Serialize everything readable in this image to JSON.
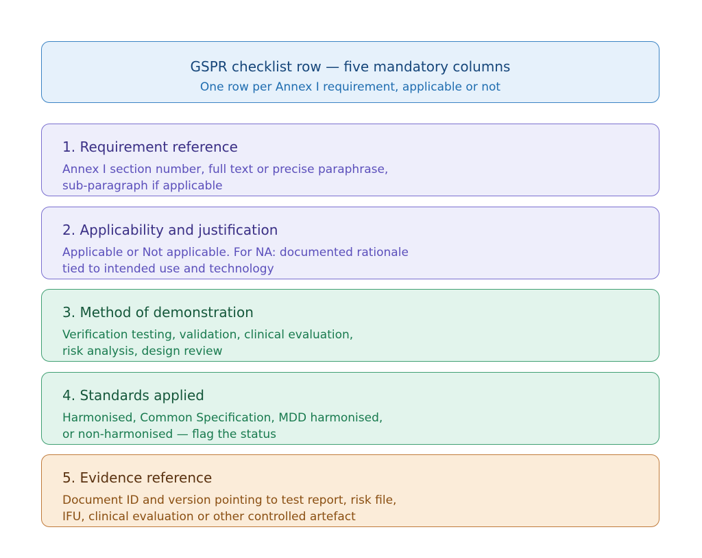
{
  "header": {
    "title": "GSPR checklist row — five mandatory columns",
    "subtitle": "One row per Annex I requirement, applicable or not"
  },
  "items": [
    {
      "title": "1. Requirement reference",
      "desc_line1": "Annex I section number, full text or precise paraphrase,",
      "desc_line2": "sub-paragraph if applicable"
    },
    {
      "title": "2. Applicability and justification",
      "desc_line1": "Applicable or Not applicable. For NA: documented rationale",
      "desc_line2": "tied to intended use and technology"
    },
    {
      "title": "3. Method of demonstration",
      "desc_line1": "Verification testing, validation, clinical evaluation,",
      "desc_line2": "risk analysis, design review"
    },
    {
      "title": "4. Standards applied",
      "desc_line1": "Harmonised, Common Specification, MDD harmonised,",
      "desc_line2": "or non-harmonised — flag the status"
    },
    {
      "title": "5. Evidence reference",
      "desc_line1": "Document ID and version pointing to test report, risk file,",
      "desc_line2": "IFU, clinical evaluation or other controlled artefact"
    }
  ],
  "colors": {
    "header_fill": "#e6f1fb",
    "purple_fill": "#eeeefb",
    "green_fill": "#e2f4ec",
    "orange_fill": "#fbecd9"
  }
}
